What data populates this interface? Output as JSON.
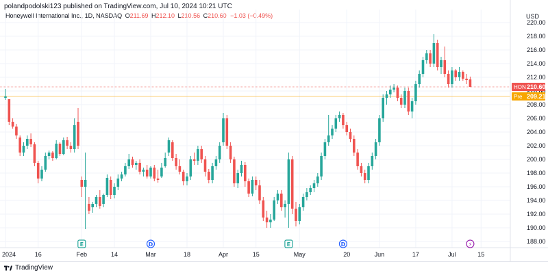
{
  "header": {
    "published": "polandpodolski123 published on TradingView.com, Jul 10, 2024 10:21 UTC",
    "symbol_desc": "Honeywell International Inc., 1D, NASDAQ",
    "ohlc": [
      {
        "label": "O",
        "value": "211.69"
      },
      {
        "label": "H",
        "value": "212.10"
      },
      {
        "label": "L",
        "value": "210.56"
      },
      {
        "label": "C",
        "value": "210.60"
      }
    ],
    "change": "−1.03 (−0.49%)",
    "currency": "USD"
  },
  "footer": {
    "brand": "TradingView"
  },
  "colors": {
    "up": "#26a69a",
    "down": "#ef5350",
    "pre": "#f7a600",
    "grid": "#f0f3fa",
    "text": "#131722",
    "event_earnings": "#26a69a",
    "event_dividend": "#2962ff",
    "event_split": "#9c27b0"
  },
  "chart_data": {
    "type": "candlestick",
    "symbol": "HON",
    "timeframe": "1D",
    "ylim": [
      187,
      220
    ],
    "y_ticks": [
      "188.00",
      "190.00",
      "192.00",
      "194.00",
      "196.00",
      "198.00",
      "200.00",
      "202.00",
      "204.00",
      "206.00",
      "208.00",
      "210.00",
      "212.00",
      "214.00",
      "216.00",
      "218.00",
      "220.00"
    ],
    "x_ticks": [
      {
        "label": "2024",
        "bar": 0
      },
      {
        "label": "16",
        "bar": 9
      },
      {
        "label": "Feb",
        "bar": 21
      },
      {
        "label": "14",
        "bar": 30
      },
      {
        "label": "Mar",
        "bar": 40
      },
      {
        "label": "18",
        "bar": 50
      },
      {
        "label": "Apr",
        "bar": 60
      },
      {
        "label": "15",
        "bar": 69
      },
      {
        "label": "May",
        "bar": 81
      },
      {
        "label": "20",
        "bar": 94
      },
      {
        "label": "Jun",
        "bar": 103
      },
      {
        "label": "17",
        "bar": 113
      },
      {
        "label": "Jul",
        "bar": 123
      },
      {
        "label": "15",
        "bar": 131
      }
    ],
    "price_labels": [
      {
        "name": "HON",
        "value": 210.6,
        "color": "#ef5350",
        "text": "210.60"
      },
      {
        "name": "Pre",
        "value": 209.21,
        "color": "#f7a600",
        "text": "209.21"
      }
    ],
    "partial_label": "210.00",
    "events": [
      {
        "type": "earnings",
        "symbol": "E",
        "bar": 21
      },
      {
        "type": "dividend",
        "symbol": "D",
        "bar": 40
      },
      {
        "type": "earnings",
        "symbol": "E",
        "bar": 78
      },
      {
        "type": "dividend",
        "symbol": "D",
        "bar": 93
      },
      {
        "type": "split",
        "symbol": "⚡",
        "bar": 128
      }
    ],
    "candles": [
      {
        "o": 209.0,
        "h": 210.3,
        "l": 208.7,
        "c": 209.2
      },
      {
        "o": 208.8,
        "h": 208.8,
        "l": 205.0,
        "c": 205.5
      },
      {
        "o": 205.5,
        "h": 206.0,
        "l": 204.5,
        "c": 204.8
      },
      {
        "o": 204.8,
        "h": 205.2,
        "l": 203.0,
        "c": 203.5
      },
      {
        "o": 203.2,
        "h": 203.5,
        "l": 200.5,
        "c": 201.0
      },
      {
        "o": 201.0,
        "h": 202.5,
        "l": 200.5,
        "c": 202.0
      },
      {
        "o": 202.0,
        "h": 203.5,
        "l": 201.5,
        "c": 203.0
      },
      {
        "o": 203.0,
        "h": 203.8,
        "l": 201.8,
        "c": 202.2
      },
      {
        "o": 202.2,
        "h": 202.5,
        "l": 199.0,
        "c": 199.5
      },
      {
        "o": 199.5,
        "h": 199.8,
        "l": 196.5,
        "c": 197.2
      },
      {
        "o": 197.2,
        "h": 199.0,
        "l": 196.8,
        "c": 198.5
      },
      {
        "o": 198.5,
        "h": 201.0,
        "l": 198.2,
        "c": 200.5
      },
      {
        "o": 200.5,
        "h": 201.3,
        "l": 200.0,
        "c": 201.0
      },
      {
        "o": 201.0,
        "h": 201.2,
        "l": 199.8,
        "c": 200.2
      },
      {
        "o": 200.2,
        "h": 202.8,
        "l": 200.0,
        "c": 202.3
      },
      {
        "o": 202.3,
        "h": 202.5,
        "l": 200.5,
        "c": 200.8
      },
      {
        "o": 200.8,
        "h": 203.2,
        "l": 200.6,
        "c": 202.8
      },
      {
        "o": 202.8,
        "h": 203.3,
        "l": 201.5,
        "c": 202.0
      },
      {
        "o": 202.0,
        "h": 202.5,
        "l": 201.0,
        "c": 201.5
      },
      {
        "o": 201.5,
        "h": 206.0,
        "l": 201.0,
        "c": 205.0
      },
      {
        "o": 205.5,
        "h": 207.5,
        "l": 201.5,
        "c": 202.0
      },
      {
        "o": 197.0,
        "h": 197.5,
        "l": 194.5,
        "c": 196.0
      },
      {
        "o": 196.0,
        "h": 201.0,
        "l": 189.8,
        "c": 197.0
      },
      {
        "o": 193.5,
        "h": 194.5,
        "l": 192.0,
        "c": 192.5
      },
      {
        "o": 193.0,
        "h": 193.8,
        "l": 192.2,
        "c": 193.5
      },
      {
        "o": 193.5,
        "h": 194.8,
        "l": 193.0,
        "c": 194.5
      },
      {
        "o": 194.5,
        "h": 195.5,
        "l": 192.8,
        "c": 193.2
      },
      {
        "o": 193.5,
        "h": 195.0,
        "l": 193.0,
        "c": 194.8
      },
      {
        "o": 194.8,
        "h": 197.8,
        "l": 194.5,
        "c": 197.3
      },
      {
        "o": 197.0,
        "h": 197.5,
        "l": 194.2,
        "c": 194.8
      },
      {
        "o": 194.8,
        "h": 196.5,
        "l": 194.3,
        "c": 196.0
      },
      {
        "o": 196.0,
        "h": 197.8,
        "l": 195.5,
        "c": 197.2
      },
      {
        "o": 197.2,
        "h": 198.2,
        "l": 196.8,
        "c": 197.8
      },
      {
        "o": 197.8,
        "h": 199.5,
        "l": 197.5,
        "c": 199.0
      },
      {
        "o": 199.0,
        "h": 200.8,
        "l": 198.6,
        "c": 200.0
      },
      {
        "o": 200.0,
        "h": 200.4,
        "l": 198.8,
        "c": 199.2
      },
      {
        "o": 199.2,
        "h": 199.8,
        "l": 198.5,
        "c": 199.5
      },
      {
        "o": 199.5,
        "h": 200.0,
        "l": 197.8,
        "c": 198.2
      },
      {
        "o": 198.2,
        "h": 198.8,
        "l": 197.5,
        "c": 198.5
      },
      {
        "o": 198.5,
        "h": 199.2,
        "l": 197.2,
        "c": 197.5
      },
      {
        "o": 197.5,
        "h": 199.0,
        "l": 197.2,
        "c": 198.8
      },
      {
        "o": 198.8,
        "h": 199.2,
        "l": 196.8,
        "c": 197.2
      },
      {
        "o": 197.2,
        "h": 198.5,
        "l": 196.6,
        "c": 197.0
      },
      {
        "o": 197.5,
        "h": 199.5,
        "l": 197.3,
        "c": 198.8
      },
      {
        "o": 199.0,
        "h": 201.0,
        "l": 198.8,
        "c": 200.2
      },
      {
        "o": 201.0,
        "h": 203.2,
        "l": 200.5,
        "c": 202.8
      },
      {
        "o": 202.5,
        "h": 202.8,
        "l": 199.8,
        "c": 200.2
      },
      {
        "o": 200.2,
        "h": 200.8,
        "l": 198.5,
        "c": 199.0
      },
      {
        "o": 199.0,
        "h": 200.0,
        "l": 197.8,
        "c": 198.2
      },
      {
        "o": 198.2,
        "h": 198.5,
        "l": 196.2,
        "c": 196.8
      },
      {
        "o": 196.8,
        "h": 198.0,
        "l": 196.2,
        "c": 197.5
      },
      {
        "o": 197.5,
        "h": 200.5,
        "l": 197.0,
        "c": 200.0
      },
      {
        "o": 200.0,
        "h": 201.0,
        "l": 199.2,
        "c": 199.8
      },
      {
        "o": 199.8,
        "h": 202.0,
        "l": 199.2,
        "c": 201.5
      },
      {
        "o": 201.5,
        "h": 202.0,
        "l": 199.5,
        "c": 200.0
      },
      {
        "o": 200.0,
        "h": 200.5,
        "l": 197.5,
        "c": 198.2
      },
      {
        "o": 198.2,
        "h": 198.6,
        "l": 196.5,
        "c": 197.0
      },
      {
        "o": 197.0,
        "h": 199.5,
        "l": 196.5,
        "c": 199.0
      },
      {
        "o": 199.0,
        "h": 200.5,
        "l": 198.5,
        "c": 200.0
      },
      {
        "o": 200.0,
        "h": 202.5,
        "l": 199.5,
        "c": 202.0
      },
      {
        "o": 202.5,
        "h": 206.8,
        "l": 202.0,
        "c": 206.0
      },
      {
        "o": 206.0,
        "h": 206.5,
        "l": 201.5,
        "c": 202.0
      },
      {
        "o": 202.0,
        "h": 202.5,
        "l": 199.5,
        "c": 200.0
      },
      {
        "o": 200.0,
        "h": 200.4,
        "l": 196.0,
        "c": 196.5
      },
      {
        "o": 196.5,
        "h": 198.5,
        "l": 195.8,
        "c": 198.0
      },
      {
        "o": 198.0,
        "h": 199.8,
        "l": 197.5,
        "c": 199.2
      },
      {
        "o": 199.2,
        "h": 199.6,
        "l": 196.0,
        "c": 196.8
      },
      {
        "o": 196.8,
        "h": 197.2,
        "l": 194.5,
        "c": 195.0
      },
      {
        "o": 195.0,
        "h": 197.5,
        "l": 194.6,
        "c": 197.0
      },
      {
        "o": 197.0,
        "h": 197.5,
        "l": 195.5,
        "c": 196.2
      },
      {
        "o": 196.2,
        "h": 197.0,
        "l": 193.5,
        "c": 194.0
      },
      {
        "o": 194.0,
        "h": 194.5,
        "l": 191.0,
        "c": 191.5
      },
      {
        "o": 191.5,
        "h": 192.5,
        "l": 190.0,
        "c": 190.8
      },
      {
        "o": 190.8,
        "h": 192.0,
        "l": 190.0,
        "c": 191.2
      },
      {
        "o": 191.2,
        "h": 194.5,
        "l": 191.0,
        "c": 194.0
      },
      {
        "o": 194.0,
        "h": 195.5,
        "l": 193.5,
        "c": 195.0
      },
      {
        "o": 195.0,
        "h": 195.5,
        "l": 192.5,
        "c": 193.0
      },
      {
        "o": 193.0,
        "h": 194.0,
        "l": 191.5,
        "c": 193.5
      },
      {
        "o": 193.5,
        "h": 201.0,
        "l": 190.0,
        "c": 200.0
      },
      {
        "o": 200.0,
        "h": 200.5,
        "l": 192.0,
        "c": 192.8
      },
      {
        "o": 192.8,
        "h": 193.8,
        "l": 190.2,
        "c": 191.0
      },
      {
        "o": 191.0,
        "h": 193.5,
        "l": 190.5,
        "c": 193.0
      },
      {
        "o": 193.0,
        "h": 195.0,
        "l": 192.5,
        "c": 194.5
      },
      {
        "o": 194.5,
        "h": 195.8,
        "l": 194.0,
        "c": 195.2
      },
      {
        "o": 195.2,
        "h": 196.2,
        "l": 194.8,
        "c": 195.8
      },
      {
        "o": 195.8,
        "h": 197.0,
        "l": 195.2,
        "c": 196.5
      },
      {
        "o": 196.5,
        "h": 198.0,
        "l": 196.0,
        "c": 197.5
      },
      {
        "o": 197.5,
        "h": 201.0,
        "l": 197.0,
        "c": 200.5
      },
      {
        "o": 200.5,
        "h": 203.0,
        "l": 200.0,
        "c": 202.5
      },
      {
        "o": 202.5,
        "h": 206.5,
        "l": 202.0,
        "c": 203.5
      },
      {
        "o": 203.5,
        "h": 205.0,
        "l": 203.0,
        "c": 204.5
      },
      {
        "o": 204.5,
        "h": 206.5,
        "l": 204.0,
        "c": 206.0
      },
      {
        "o": 206.0,
        "h": 207.0,
        "l": 205.5,
        "c": 206.5
      },
      {
        "o": 206.5,
        "h": 206.8,
        "l": 204.5,
        "c": 205.0
      },
      {
        "o": 205.0,
        "h": 205.5,
        "l": 203.5,
        "c": 204.0
      },
      {
        "o": 204.0,
        "h": 204.5,
        "l": 202.5,
        "c": 203.0
      },
      {
        "o": 203.0,
        "h": 203.5,
        "l": 200.5,
        "c": 201.0
      },
      {
        "o": 201.0,
        "h": 201.5,
        "l": 198.5,
        "c": 199.0
      },
      {
        "o": 199.0,
        "h": 199.5,
        "l": 197.5,
        "c": 198.0
      },
      {
        "o": 198.0,
        "h": 198.5,
        "l": 196.5,
        "c": 197.0
      },
      {
        "o": 197.0,
        "h": 199.5,
        "l": 196.5,
        "c": 199.0
      },
      {
        "o": 199.0,
        "h": 201.0,
        "l": 198.5,
        "c": 200.5
      },
      {
        "o": 200.5,
        "h": 203.0,
        "l": 200.0,
        "c": 202.5
      },
      {
        "o": 202.5,
        "h": 206.5,
        "l": 202.0,
        "c": 206.0
      },
      {
        "o": 206.0,
        "h": 209.5,
        "l": 205.5,
        "c": 209.0
      },
      {
        "o": 209.0,
        "h": 210.0,
        "l": 208.0,
        "c": 209.5
      },
      {
        "o": 209.5,
        "h": 210.8,
        "l": 209.0,
        "c": 210.2
      },
      {
        "o": 210.2,
        "h": 211.0,
        "l": 209.8,
        "c": 210.5
      },
      {
        "o": 210.5,
        "h": 210.8,
        "l": 208.5,
        "c": 209.0
      },
      {
        "o": 209.0,
        "h": 209.5,
        "l": 207.5,
        "c": 208.0
      },
      {
        "o": 208.0,
        "h": 210.5,
        "l": 207.5,
        "c": 210.0
      },
      {
        "o": 210.0,
        "h": 210.5,
        "l": 206.5,
        "c": 207.0
      },
      {
        "o": 207.0,
        "h": 209.0,
        "l": 206.0,
        "c": 208.5
      },
      {
        "o": 208.5,
        "h": 211.5,
        "l": 208.0,
        "c": 211.0
      },
      {
        "o": 211.0,
        "h": 213.0,
        "l": 210.5,
        "c": 212.5
      },
      {
        "o": 212.5,
        "h": 215.0,
        "l": 212.0,
        "c": 214.5
      },
      {
        "o": 214.5,
        "h": 216.0,
        "l": 214.0,
        "c": 215.5
      },
      {
        "o": 215.5,
        "h": 216.0,
        "l": 213.5,
        "c": 214.0
      },
      {
        "o": 214.0,
        "h": 218.3,
        "l": 213.5,
        "c": 217.0
      },
      {
        "o": 217.0,
        "h": 217.5,
        "l": 213.0,
        "c": 213.5
      },
      {
        "o": 213.5,
        "h": 215.0,
        "l": 212.5,
        "c": 214.5
      },
      {
        "o": 214.5,
        "h": 216.5,
        "l": 212.0,
        "c": 212.5
      },
      {
        "o": 212.5,
        "h": 213.0,
        "l": 210.5,
        "c": 211.0
      },
      {
        "o": 211.0,
        "h": 213.5,
        "l": 210.5,
        "c": 213.0
      },
      {
        "o": 213.0,
        "h": 213.2,
        "l": 211.5,
        "c": 212.0
      },
      {
        "o": 212.0,
        "h": 213.5,
        "l": 211.5,
        "c": 212.8
      },
      {
        "o": 212.8,
        "h": 213.0,
        "l": 211.5,
        "c": 211.8
      },
      {
        "o": 211.8,
        "h": 212.5,
        "l": 211.0,
        "c": 211.6
      },
      {
        "o": 211.69,
        "h": 212.1,
        "l": 210.56,
        "c": 210.6
      }
    ]
  }
}
